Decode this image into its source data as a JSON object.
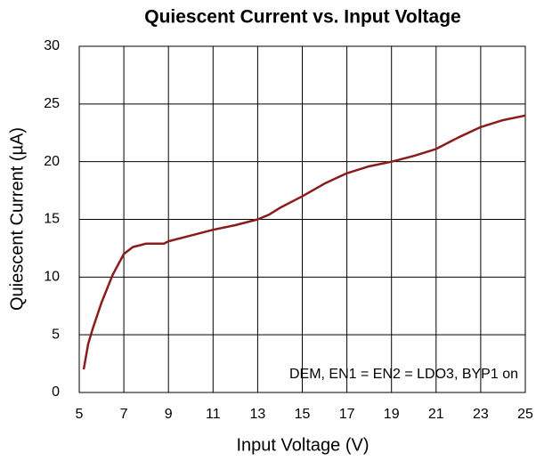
{
  "chart_data": {
    "type": "line",
    "title": "Quiescent Current vs. Input Voltage",
    "x_label": "Input Voltage (V)",
    "y_label": "Quiescent Current (µA)",
    "annotation": "DEM, EN1 = EN2 = LDO3, BYP1 on",
    "x": [
      5.2,
      5.4,
      5.6,
      6.0,
      6.5,
      7.0,
      7.4,
      8.0,
      8.8,
      9.0,
      10,
      11,
      12,
      13,
      13.5,
      14,
      15,
      16,
      17,
      18,
      19,
      20,
      21,
      22,
      23,
      24,
      25
    ],
    "series": [
      {
        "name": "Quiescent Current",
        "color": "#8b1c1c",
        "values": [
          2,
          4.2,
          5.5,
          7.8,
          10.2,
          12,
          12.6,
          12.9,
          12.9,
          13.1,
          13.6,
          14.1,
          14.5,
          15,
          15.4,
          16,
          17,
          18.1,
          19,
          19.6,
          20,
          20.5,
          21.1,
          22.1,
          23,
          23.6,
          24
        ]
      }
    ],
    "xlim": [
      5,
      25
    ],
    "xticks": [
      5,
      7,
      9,
      11,
      13,
      15,
      17,
      19,
      21,
      23,
      25
    ],
    "ylim": [
      0,
      30
    ],
    "yticks": [
      0,
      5,
      10,
      15,
      20,
      25,
      30
    ],
    "grid": true
  }
}
